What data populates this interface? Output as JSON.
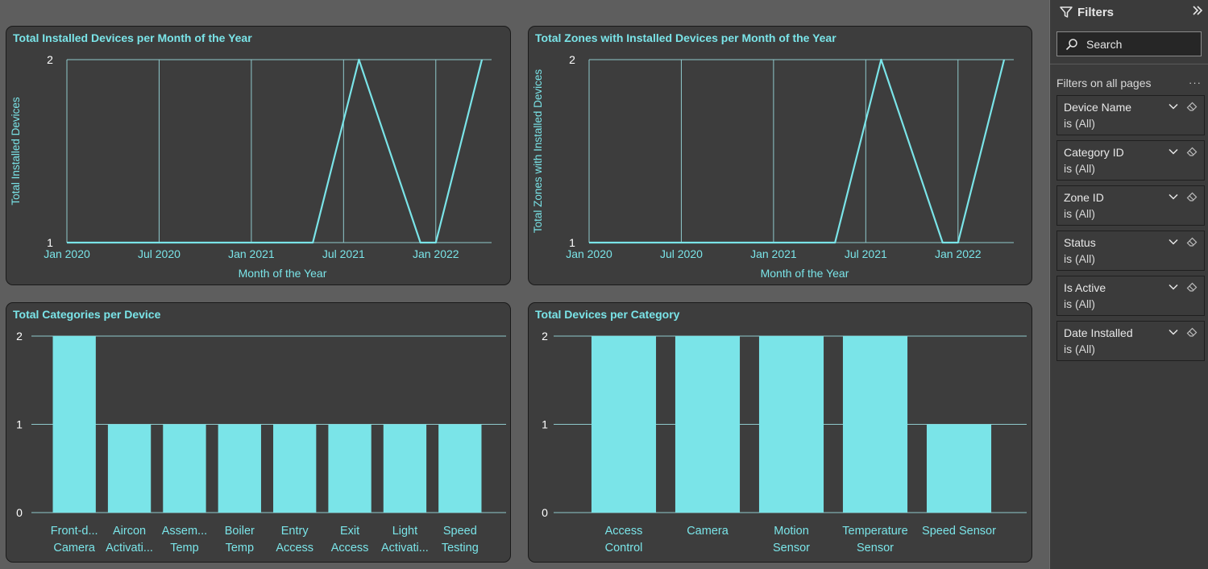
{
  "charts": {
    "installed_devices": {
      "title": "Total Installed Devices per Month of the Year",
      "chart_data": {
        "type": "line",
        "title": "Total Installed Devices per Month of the Year",
        "xlabel": "Month of the Year",
        "ylabel": "Total Installed Devices",
        "x_ticks": [
          "Jan 2020",
          "Jul 2020",
          "Jan 2021",
          "Jul 2021",
          "Jan 2022"
        ],
        "y_ticks": [
          "1",
          "2"
        ],
        "ylim": [
          1,
          2
        ],
        "xlim": [
          "2020-01",
          "2022-04"
        ],
        "grid": "vertical and top line",
        "points": [
          {
            "x": "2020-01",
            "y": 1
          },
          {
            "x": "2021-05",
            "y": 1
          },
          {
            "x": "2021-08",
            "y": 2
          },
          {
            "x": "2021-12",
            "y": 1
          },
          {
            "x": "2022-01",
            "y": 1
          },
          {
            "x": "2022-04",
            "y": 2
          }
        ],
        "color": "#7ae4e8"
      }
    },
    "zones_installed": {
      "title": "Total Zones with Installed Devices per Month of the Year",
      "chart_data": {
        "type": "line",
        "title": "Total Zones with Installed Devices per Month of the Year",
        "xlabel": "Month of the Year",
        "ylabel": "Total Zones with Installed Devices",
        "x_ticks": [
          "Jan 2020",
          "Jul 2020",
          "Jan 2021",
          "Jul 2021",
          "Jan 2022"
        ],
        "y_ticks": [
          "1",
          "2"
        ],
        "ylim": [
          1,
          2
        ],
        "xlim": [
          "2020-01",
          "2022-04"
        ],
        "grid": "vertical and top line",
        "points": [
          {
            "x": "2020-01",
            "y": 1
          },
          {
            "x": "2021-05",
            "y": 1
          },
          {
            "x": "2021-08",
            "y": 2
          },
          {
            "x": "2021-12",
            "y": 1
          },
          {
            "x": "2022-01",
            "y": 1
          },
          {
            "x": "2022-04",
            "y": 2
          }
        ],
        "color": "#7ae4e8"
      }
    },
    "categories_per_device": {
      "title": "Total Categories per Device",
      "chart_data": {
        "type": "bar",
        "title": "Total Categories per Device",
        "categories": [
          [
            "Front-d...",
            "Camera"
          ],
          [
            "Aircon",
            "Activati..."
          ],
          [
            "Assem...",
            "Temp"
          ],
          [
            "Boiler",
            "Temp"
          ],
          [
            "Entry",
            "Access"
          ],
          [
            "Exit",
            "Access"
          ],
          [
            "Light",
            "Activati..."
          ],
          [
            "Speed",
            "Testing"
          ]
        ],
        "values": [
          2,
          1,
          1,
          1,
          1,
          1,
          1,
          1
        ],
        "y_ticks": [
          "0",
          "1",
          "2"
        ],
        "ylim": [
          0,
          2
        ],
        "grid": "horizontal",
        "color": "#7ae4e8"
      }
    },
    "devices_per_category": {
      "title": "Total Devices per Category",
      "chart_data": {
        "type": "bar",
        "title": "Total Devices per Category",
        "categories": [
          [
            "Access",
            "Control"
          ],
          [
            "Camera"
          ],
          [
            "Motion",
            "Sensor"
          ],
          [
            "Temperature",
            "Sensor"
          ],
          [
            "Speed Sensor"
          ]
        ],
        "values": [
          2,
          2,
          2,
          2,
          1
        ],
        "y_ticks": [
          "0",
          "1",
          "2"
        ],
        "ylim": [
          0,
          2
        ],
        "grid": "horizontal",
        "color": "#7ae4e8"
      }
    }
  },
  "filters_pane": {
    "title": "Filters",
    "search_placeholder": "Search",
    "section_label": "Filters on all pages",
    "more": "···",
    "filters": [
      {
        "name": "Device Name",
        "value": "is (All)"
      },
      {
        "name": "Category ID",
        "value": "is (All)"
      },
      {
        "name": "Zone ID",
        "value": "is (All)"
      },
      {
        "name": "Status",
        "value": "is (All)"
      },
      {
        "name": "Is Active",
        "value": "is (All)"
      },
      {
        "name": "Date Installed",
        "value": "is (All)"
      }
    ]
  },
  "colors": {
    "accent": "#7ae4e8",
    "card_bg": "#3d3d3d",
    "page_bg": "#5e5e5e",
    "pane_bg": "#3b3b3b"
  },
  "icons": {
    "filter": "funnel-icon",
    "collapse": "double-chevron-right-icon",
    "search": "magnifier-icon",
    "chevron": "chevron-down-icon",
    "eraser": "eraser-icon"
  }
}
